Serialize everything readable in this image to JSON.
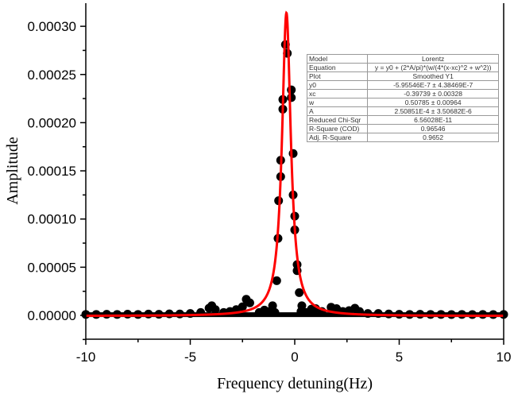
{
  "chart_data": {
    "type": "scatter",
    "xlabel": "Frequency detuning(Hz)",
    "ylabel": "Amplitude",
    "xlim": [
      -10,
      10
    ],
    "ylim": [
      -2.47e-05,
      0.000324
    ],
    "x_ticks": [
      -10,
      -5,
      0,
      5,
      10
    ],
    "x_tick_labels": [
      "-10",
      "-5",
      "0",
      "5",
      "10"
    ],
    "y_ticks": [
      0,
      5e-05,
      0.0001,
      0.00015,
      0.0002,
      0.00025,
      0.0003
    ],
    "y_tick_labels": [
      "0.00000",
      "0.00005",
      "0.00010",
      "0.00015",
      "0.00020",
      "0.00025",
      "0.00030"
    ],
    "grid": false,
    "colors": {
      "points": "#000000",
      "fit": "#ff0000"
    },
    "series": [
      {
        "kind": "scatter",
        "points": [
          [
            -0.445,
            0.000281
          ],
          [
            -0.354,
            0.000272
          ],
          [
            -0.163,
            0.000234
          ],
          [
            -0.57,
            0.000224
          ],
          [
            -0.163,
            0.000226
          ],
          [
            -0.57,
            0.000214
          ],
          [
            -0.076,
            0.000168
          ],
          [
            -0.673,
            0.000161
          ],
          [
            -0.673,
            0.000144
          ],
          [
            -0.076,
            0.000125
          ],
          [
            -0.772,
            0.000119
          ],
          [
            0.0,
            0.000103
          ],
          [
            0.0,
            8.87e-05
          ],
          [
            -0.8,
            7.99e-05
          ],
          [
            0.114,
            5.27e-05
          ],
          [
            0.114,
            4.64e-05
          ],
          [
            -0.863,
            3.6e-05
          ],
          [
            0.217,
            2.36e-05
          ],
          [
            -3.97,
            1e-05
          ],
          [
            -4.1,
            7.5e-06
          ],
          [
            -3.8,
            6e-06
          ],
          [
            -2.32,
            1.67e-05
          ],
          [
            -2.15,
            1.3e-05
          ],
          [
            -2.5,
            9e-06
          ],
          [
            -2.8,
            6e-06
          ],
          [
            -3.1,
            4e-06
          ],
          [
            -3.4,
            3e-06
          ],
          [
            -1.06,
            1e-05
          ],
          [
            -1.2,
            4e-06
          ],
          [
            -1.45,
            5.5e-06
          ],
          [
            -1.7,
            3e-06
          ],
          [
            -0.95,
            3e-06
          ],
          [
            0.34,
            1e-05
          ],
          [
            0.3,
            4e-06
          ],
          [
            0.55,
            3e-06
          ],
          [
            0.8,
            6.5e-06
          ],
          [
            1.0,
            7e-06
          ],
          [
            1.3,
            4e-06
          ],
          [
            1.74,
            8.5e-06
          ],
          [
            2.0,
            7e-06
          ],
          [
            2.3,
            4e-06
          ],
          [
            2.6,
            5e-06
          ],
          [
            2.88,
            7.4e-06
          ],
          [
            3.1,
            4e-06
          ],
          [
            3.5,
            2e-06
          ],
          [
            4.0,
            2e-06
          ],
          [
            -10,
            1e-06
          ],
          [
            -9.5,
            1e-06
          ],
          [
            -9,
            1.2e-06
          ],
          [
            -8.5,
            1e-06
          ],
          [
            -8,
            1.3e-06
          ],
          [
            -7.5,
            1e-06
          ],
          [
            -7,
            1.4e-06
          ],
          [
            -6.5,
            1.2e-06
          ],
          [
            -6,
            1.6e-06
          ],
          [
            -5.5,
            1.5e-06
          ],
          [
            -5,
            2e-06
          ],
          [
            -4.5,
            3e-06
          ],
          [
            4.5,
            1.5e-06
          ],
          [
            5,
            1.2e-06
          ],
          [
            5.5,
            1e-06
          ],
          [
            6,
            1.2e-06
          ],
          [
            6.5,
            1e-06
          ],
          [
            7,
            1e-06
          ],
          [
            7.5,
            9e-07
          ],
          [
            8,
            1e-06
          ],
          [
            8.5,
            9e-07
          ],
          [
            9,
            1e-06
          ],
          [
            9.5,
            9e-07
          ],
          [
            10,
            1e-06
          ]
        ]
      },
      {
        "kind": "fit-line",
        "model": "Lorentz",
        "params": {
          "y0": -5.95546e-07,
          "xc": -0.39739,
          "w": 0.50785,
          "A": 0.000250851
        }
      }
    ],
    "fit_table": [
      {
        "label": "Model",
        "value": "Lorentz"
      },
      {
        "label": "Equation",
        "value": "y = y0 + (2*A/pi)*(w/(4*(x-xc)^2 + w^2))"
      },
      {
        "label": "Plot",
        "value": "Smoothed Y1"
      },
      {
        "label": "y0",
        "value": "-5.95546E-7 ± 4.38469E-7"
      },
      {
        "label": "xc",
        "value": "-0.39739 ± 0.00328"
      },
      {
        "label": "w",
        "value": "0.50785 ± 0.00964"
      },
      {
        "label": "A",
        "value": "2.50851E-4 ± 3.50682E-6"
      },
      {
        "label": "Reduced Chi-Sqr",
        "value": "6.56028E-11"
      },
      {
        "label": "R-Square (COD)",
        "value": "0.96546"
      },
      {
        "label": "Adj. R-Square",
        "value": "0.9652"
      }
    ]
  }
}
